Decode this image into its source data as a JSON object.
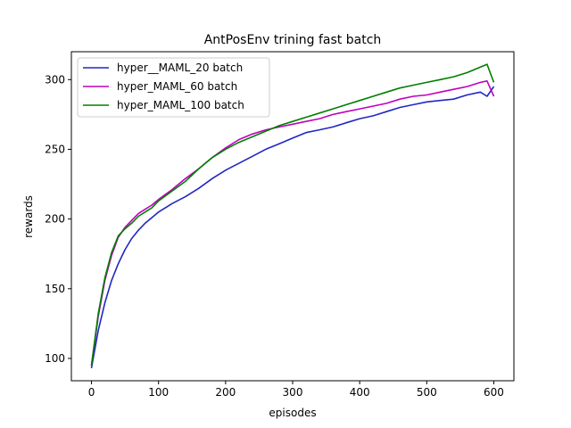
{
  "chart_data": {
    "type": "line",
    "title": "AntPosEnv trining fast batch",
    "xlabel": "episodes",
    "ylabel": "rewards",
    "xlim": [
      -30,
      630
    ],
    "ylim": [
      84,
      320
    ],
    "xticks": [
      0,
      100,
      200,
      300,
      400,
      500,
      600
    ],
    "yticks": [
      100,
      150,
      200,
      250,
      300
    ],
    "grid": false,
    "legend_position": "upper-left",
    "series": [
      {
        "name": "hyper__MAML_20 batch",
        "color": "#2027c2",
        "x": [
          0,
          10,
          20,
          30,
          40,
          50,
          60,
          70,
          80,
          90,
          100,
          120,
          140,
          160,
          180,
          200,
          220,
          240,
          260,
          280,
          300,
          320,
          340,
          360,
          380,
          400,
          420,
          440,
          460,
          480,
          500,
          520,
          540,
          560,
          580,
          590,
          600
        ],
        "values": [
          93,
          120,
          140,
          156,
          168,
          178,
          186,
          192,
          197,
          201,
          205,
          211,
          216,
          222,
          229,
          235,
          240,
          245,
          250,
          254,
          258,
          262,
          264,
          266,
          269,
          272,
          274,
          277,
          280,
          282,
          284,
          285,
          286,
          289,
          291,
          288,
          295
        ]
      },
      {
        "name": "hyper_MAML_60 batch",
        "color": "#bf00bf",
        "x": [
          0,
          10,
          20,
          30,
          40,
          50,
          60,
          70,
          80,
          90,
          100,
          120,
          140,
          160,
          180,
          200,
          220,
          240,
          260,
          280,
          300,
          320,
          340,
          360,
          380,
          400,
          420,
          440,
          460,
          480,
          500,
          520,
          540,
          560,
          580,
          590,
          600
        ],
        "values": [
          95,
          130,
          156,
          174,
          187,
          194,
          199,
          204,
          207,
          210,
          214,
          221,
          229,
          236,
          244,
          251,
          257,
          261,
          264,
          266,
          268,
          270,
          272,
          275,
          277,
          279,
          281,
          283,
          286,
          288,
          289,
          291,
          293,
          295,
          298,
          299,
          288
        ]
      },
      {
        "name": "hyper_MAML_100 batch",
        "color": "#007f00",
        "x": [
          0,
          10,
          20,
          30,
          40,
          50,
          60,
          70,
          80,
          90,
          100,
          120,
          140,
          160,
          180,
          200,
          220,
          240,
          260,
          280,
          300,
          320,
          340,
          360,
          380,
          400,
          420,
          440,
          460,
          480,
          500,
          520,
          540,
          560,
          580,
          590,
          600
        ],
        "values": [
          95,
          132,
          158,
          176,
          188,
          193,
          197,
          202,
          205,
          208,
          213,
          220,
          227,
          236,
          244,
          250,
          255,
          259,
          263,
          267,
          270,
          273,
          276,
          279,
          282,
          285,
          288,
          291,
          294,
          296,
          298,
          300,
          302,
          305,
          309,
          311,
          298
        ]
      }
    ]
  }
}
